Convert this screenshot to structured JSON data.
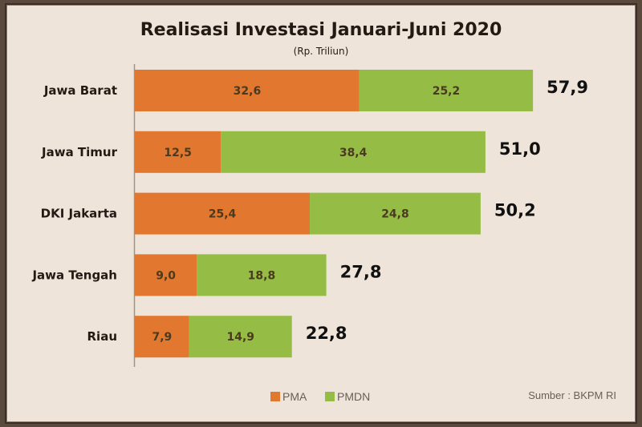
{
  "chart_data": {
    "type": "bar",
    "orientation": "horizontal",
    "stacked": true,
    "title": "Realisasi Investasi Januari-Juni 2020",
    "subtitle": "(Rp. Triliun)",
    "categories": [
      "Jawa Barat",
      "Jawa Timur",
      "DKI Jakarta",
      "Jawa Tengah",
      "Riau"
    ],
    "series": [
      {
        "name": "PMA",
        "color": "#e2782f",
        "values": [
          32.6,
          12.5,
          25.4,
          9.0,
          7.9
        ],
        "labels": [
          "32,6",
          "12,5",
          "25,4",
          "9,0",
          "7,9"
        ]
      },
      {
        "name": "PMDN",
        "color": "#95bd45",
        "values": [
          25.2,
          38.4,
          24.8,
          18.8,
          14.9
        ],
        "labels": [
          "25,2",
          "38,4",
          "24,8",
          "18,8",
          "14,9"
        ]
      }
    ],
    "totals": [
      57.9,
      51.0,
      50.2,
      27.8,
      22.8
    ],
    "total_labels": [
      "57,9",
      "51,0",
      "50,2",
      "27,8",
      "22,8"
    ],
    "legend": [
      "PMA",
      "PMDN"
    ],
    "legend_position": "bottom",
    "source": "Sumber : BKPM RI",
    "xlim": [
      0,
      58
    ],
    "grid": false
  }
}
